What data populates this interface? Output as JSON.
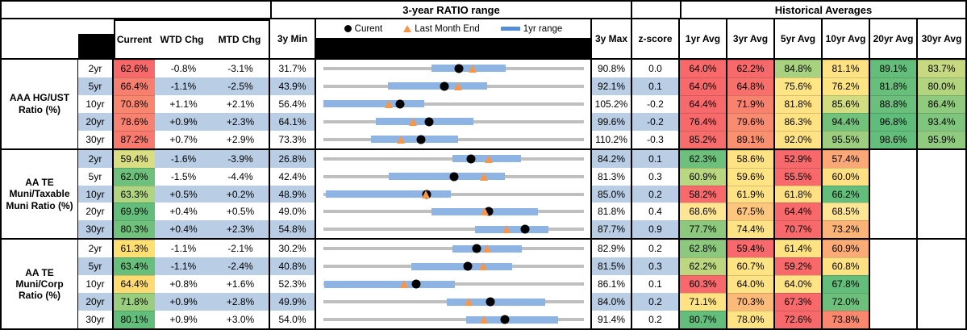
{
  "header": {
    "range_title": "3-year RATIO range",
    "hist_title": "Historical Averages",
    "col_current": "Current",
    "col_wtd": "WTD Chg",
    "col_mtd": "MTD Chg",
    "col_min": "3y Min",
    "col_max": "3y Max",
    "col_z": "z-score",
    "avg_cols": [
      "1yr Avg",
      "3yr Avg",
      "5yr Avg",
      "10yr Avg",
      "20yr Avg",
      "30yr Avg"
    ],
    "legend": {
      "current": "Curent",
      "last_month": "Last Month End",
      "range": "1yr range"
    }
  },
  "colors": {
    "row_alt_blue": "#B9CDE4",
    "row_white": "#FFFFFF",
    "track_gray": "#BFBFBF",
    "bar_blue": "#8EB4E3",
    "legend_bar_blue": "#558ED5",
    "dot_black": "#000000",
    "triangle_orange": "#F79646"
  },
  "chart_data": {
    "type": "table",
    "note": "Each row: 3y min-max range (gray track), 1yr range (blue bar), current (black dot), last month end (orange triangle); numeric values in percent",
    "groups": [
      {
        "label": "AAA HG/UST Ratio (%)",
        "rows": [
          {
            "tenor": "2yr",
            "current": "62.6%",
            "current_bg": "#F8696B",
            "wtd": "-0.8%",
            "mtd": "-3.1%",
            "min": "31.7%",
            "max": "90.8%",
            "z": "0.0",
            "min_v": 31.7,
            "max_v": 90.8,
            "cur_v": 62.6,
            "lme_v": 65.7,
            "bar": [
              56.3,
              73.1
            ],
            "avgs": [
              {
                "t": "64.0%",
                "bg": "#F8696B"
              },
              {
                "t": "62.2%",
                "bg": "#F8696B"
              },
              {
                "t": "84.8%",
                "bg": "#A8D27F"
              },
              {
                "t": "81.1%",
                "bg": "#FFE283"
              },
              {
                "t": "89.1%",
                "bg": "#63BE7B"
              },
              {
                "t": "83.7%",
                "bg": "#C6D980"
              }
            ]
          },
          {
            "tenor": "5yr",
            "current": "66.4%",
            "current_bg": "#F87E70",
            "wtd": "-1.1%",
            "mtd": "-2.5%",
            "min": "43.9%",
            "max": "92.1%",
            "z": "0.1",
            "min_v": 43.9,
            "max_v": 92.1,
            "cur_v": 66.4,
            "lme_v": 68.9,
            "bar": [
              55.9,
              74.3
            ],
            "avgs": [
              {
                "t": "64.0%",
                "bg": "#F8696B"
              },
              {
                "t": "64.8%",
                "bg": "#F8706C"
              },
              {
                "t": "75.6%",
                "bg": "#FFE584"
              },
              {
                "t": "76.2%",
                "bg": "#FFE484"
              },
              {
                "t": "81.8%",
                "bg": "#68BF7B"
              },
              {
                "t": "80.0%",
                "bg": "#B2D47F"
              }
            ]
          },
          {
            "tenor": "10yr",
            "current": "70.8%",
            "current_bg": "#F9876F",
            "wtd": "+1.1%",
            "mtd": "+2.1%",
            "min": "56.4%",
            "max": "105.2%",
            "z": "-0.2",
            "min_v": 56.4,
            "max_v": 105.2,
            "cur_v": 70.8,
            "lme_v": 68.7,
            "bar": [
              56.4,
              75.4
            ],
            "avgs": [
              {
                "t": "64.4%",
                "bg": "#F8696B"
              },
              {
                "t": "71.9%",
                "bg": "#F9826F"
              },
              {
                "t": "81.8%",
                "bg": "#FFE283"
              },
              {
                "t": "85.6%",
                "bg": "#D2DD81"
              },
              {
                "t": "88.8%",
                "bg": "#6ABF7C"
              },
              {
                "t": "86.4%",
                "bg": "#90CA7E"
              }
            ]
          },
          {
            "tenor": "20yr",
            "current": "78.6%",
            "current_bg": "#F8826F",
            "wtd": "+0.9%",
            "mtd": "+2.3%",
            "min": "64.1%",
            "max": "99.6%",
            "z": "-0.2",
            "min_v": 64.1,
            "max_v": 99.6,
            "cur_v": 78.6,
            "lme_v": 76.3,
            "bar": [
              71.3,
              84.6
            ],
            "avgs": [
              {
                "t": "76.4%",
                "bg": "#F8696B"
              },
              {
                "t": "79.6%",
                "bg": "#F98B70"
              },
              {
                "t": "86.3%",
                "bg": "#FFE383"
              },
              {
                "t": "94.4%",
                "bg": "#72C27C"
              },
              {
                "t": "96.8%",
                "bg": "#5FBD7B"
              },
              {
                "t": "93.4%",
                "bg": "#7FC57D"
              }
            ]
          },
          {
            "tenor": "30yr",
            "current": "87.2%",
            "current_bg": "#F87A6E",
            "wtd": "+0.7%",
            "mtd": "+2.9%",
            "min": "73.3%",
            "max": "110.2%",
            "z": "-0.3",
            "min_v": 73.3,
            "max_v": 110.2,
            "cur_v": 87.2,
            "lme_v": 84.3,
            "bar": [
              80.1,
              92.4
            ],
            "avgs": [
              {
                "t": "85.2%",
                "bg": "#F76D6C"
              },
              {
                "t": "89.1%",
                "bg": "#F9916F"
              },
              {
                "t": "92.0%",
                "bg": "#FFE283"
              },
              {
                "t": "95.5%",
                "bg": "#9DCE7F"
              },
              {
                "t": "98.6%",
                "bg": "#63BE7B"
              },
              {
                "t": "95.9%",
                "bg": "#90CA7E"
              }
            ]
          }
        ]
      },
      {
        "label": "AA TE Muni/Taxable Muni Ratio (%)",
        "rows": [
          {
            "tenor": "2yr",
            "current": "59.4%",
            "current_bg": "#D8DE81",
            "wtd": "-1.6%",
            "mtd": "-3.9%",
            "min": "26.8%",
            "max": "84.2%",
            "z": "0.1",
            "min_v": 26.8,
            "max_v": 84.2,
            "cur_v": 59.4,
            "lme_v": 63.3,
            "bar": [
              55.3,
              70.4
            ],
            "avgs": [
              {
                "t": "62.3%",
                "bg": "#6CC07C"
              },
              {
                "t": "58.6%",
                "bg": "#FFE283"
              },
              {
                "t": "52.9%",
                "bg": "#F8696B"
              },
              {
                "t": "57.4%",
                "bg": "#FCA876"
              },
              null,
              null
            ]
          },
          {
            "tenor": "5yr",
            "current": "62.0%",
            "current_bg": "#6EC17C",
            "wtd": "-1.5%",
            "mtd": "-4.4%",
            "min": "42.4%",
            "max": "81.3%",
            "z": "0.3",
            "min_v": 42.4,
            "max_v": 81.3,
            "cur_v": 62.0,
            "lme_v": 66.4,
            "bar": [
              52.2,
              69.5
            ],
            "avgs": [
              {
                "t": "60.9%",
                "bg": "#B9D680"
              },
              {
                "t": "59.6%",
                "bg": "#FFE484"
              },
              {
                "t": "55.5%",
                "bg": "#F8696B"
              },
              {
                "t": "60.0%",
                "bg": "#FFE183"
              },
              null,
              null
            ]
          },
          {
            "tenor": "10yr",
            "current": "63.3%",
            "current_bg": "#B0D47F",
            "wtd": "+0.5%",
            "mtd": "+0.2%",
            "min": "48.9%",
            "max": "85.0%",
            "z": "0.2",
            "min_v": 48.9,
            "max_v": 85.0,
            "cur_v": 63.3,
            "lme_v": 63.1,
            "bar": [
              49.3,
              66.6
            ],
            "avgs": [
              {
                "t": "58.2%",
                "bg": "#F8696B"
              },
              {
                "t": "61.9%",
                "bg": "#FFE283"
              },
              {
                "t": "61.8%",
                "bg": "#FFE082"
              },
              {
                "t": "66.2%",
                "bg": "#63BE7B"
              },
              null,
              null
            ]
          },
          {
            "tenor": "20yr",
            "current": "69.9%",
            "current_bg": "#63BE7B",
            "wtd": "+0.4%",
            "mtd": "+0.5%",
            "min": "49.0%",
            "max": "81.8%",
            "z": "0.4",
            "min_v": 49.0,
            "max_v": 81.8,
            "cur_v": 69.9,
            "lme_v": 69.4,
            "bar": [
              62.7,
              76.1
            ],
            "avgs": [
              {
                "t": "68.6%",
                "bg": "#FFE594"
              },
              {
                "t": "67.5%",
                "bg": "#FDC67C"
              },
              {
                "t": "64.4%",
                "bg": "#F8696B"
              },
              {
                "t": "68.5%",
                "bg": "#FFE695"
              },
              null,
              null
            ]
          },
          {
            "tenor": "30yr",
            "current": "80.3%",
            "current_bg": "#70C17C",
            "wtd": "+0.4%",
            "mtd": "+2.3%",
            "min": "54.8%",
            "max": "87.7%",
            "z": "0.9",
            "min_v": 54.8,
            "max_v": 87.7,
            "cur_v": 80.3,
            "lme_v": 78.0,
            "bar": [
              74.0,
              83.3
            ],
            "avgs": [
              {
                "t": "77.7%",
                "bg": "#8CC97E"
              },
              {
                "t": "74.4%",
                "bg": "#FFE384"
              },
              {
                "t": "70.7%",
                "bg": "#F8696B"
              },
              {
                "t": "73.2%",
                "bg": "#FBB377"
              },
              null,
              null
            ]
          }
        ]
      },
      {
        "label": "AA TE Muni/Corp Ratio (%)",
        "rows": [
          {
            "tenor": "2yr",
            "current": "61.3%",
            "current_bg": "#FFDE72",
            "wtd": "-1.1%",
            "mtd": "-2.1%",
            "min": "30.2%",
            "max": "82.9%",
            "z": "0.2",
            "min_v": 30.2,
            "max_v": 82.9,
            "cur_v": 61.3,
            "lme_v": 63.4,
            "bar": [
              56.4,
              70.4
            ],
            "avgs": [
              {
                "t": "62.8%",
                "bg": "#8CC97E"
              },
              {
                "t": "59.4%",
                "bg": "#F8696B"
              },
              {
                "t": "61.4%",
                "bg": "#FFE383"
              },
              {
                "t": "60.9%",
                "bg": "#FBAC76"
              },
              null,
              null
            ]
          },
          {
            "tenor": "5yr",
            "current": "63.4%",
            "current_bg": "#66BF7B",
            "wtd": "-1.1%",
            "mtd": "-2.4%",
            "min": "40.8%",
            "max": "81.5%",
            "z": "0.3",
            "min_v": 40.8,
            "max_v": 81.5,
            "cur_v": 63.4,
            "lme_v": 65.8,
            "bar": [
              54.6,
              70.3
            ],
            "avgs": [
              {
                "t": "62.2%",
                "bg": "#BCD780"
              },
              {
                "t": "60.7%",
                "bg": "#FFE484"
              },
              {
                "t": "59.2%",
                "bg": "#F8696B"
              },
              {
                "t": "60.8%",
                "bg": "#FFE283"
              },
              null,
              null
            ]
          },
          {
            "tenor": "10yr",
            "current": "64.4%",
            "current_bg": "#FFDB71",
            "wtd": "+0.8%",
            "mtd": "+1.6%",
            "min": "52.3%",
            "max": "86.1%",
            "z": "0.1",
            "min_v": 52.3,
            "max_v": 86.1,
            "cur_v": 64.4,
            "lme_v": 62.8,
            "bar": [
              52.5,
              69.4
            ],
            "avgs": [
              {
                "t": "60.3%",
                "bg": "#F8696B"
              },
              {
                "t": "64.0%",
                "bg": "#FFE384"
              },
              {
                "t": "64.0%",
                "bg": "#FFE384"
              },
              {
                "t": "67.8%",
                "bg": "#63BE7B"
              },
              null,
              null
            ]
          },
          {
            "tenor": "20yr",
            "current": "71.8%",
            "current_bg": "#9ACD7E",
            "wtd": "+0.9%",
            "mtd": "+2.8%",
            "min": "49.9%",
            "max": "84.0%",
            "z": "0.2",
            "min_v": 49.9,
            "max_v": 84.0,
            "cur_v": 71.8,
            "lme_v": 69.0,
            "bar": [
              66.1,
              79.0
            ],
            "avgs": [
              {
                "t": "71.1%",
                "bg": "#FFE283"
              },
              {
                "t": "70.3%",
                "bg": "#FCBA79"
              },
              {
                "t": "67.3%",
                "bg": "#F8696B"
              },
              {
                "t": "72.0%",
                "bg": "#6CC07C"
              },
              null,
              null
            ]
          },
          {
            "tenor": "30yr",
            "current": "80.1%",
            "current_bg": "#63BE7B",
            "wtd": "+0.9%",
            "mtd": "+3.0%",
            "min": "54.0%",
            "max": "91.4%",
            "z": "0.2",
            "min_v": 54.0,
            "max_v": 91.4,
            "cur_v": 80.1,
            "lme_v": 77.1,
            "bar": [
              74.5,
              87.8
            ],
            "avgs": [
              {
                "t": "80.7%",
                "bg": "#63BE7B"
              },
              {
                "t": "78.0%",
                "bg": "#FFE384"
              },
              {
                "t": "72.6%",
                "bg": "#F8696B"
              },
              {
                "t": "73.8%",
                "bg": "#F9886F"
              },
              null,
              null
            ]
          }
        ]
      }
    ]
  }
}
